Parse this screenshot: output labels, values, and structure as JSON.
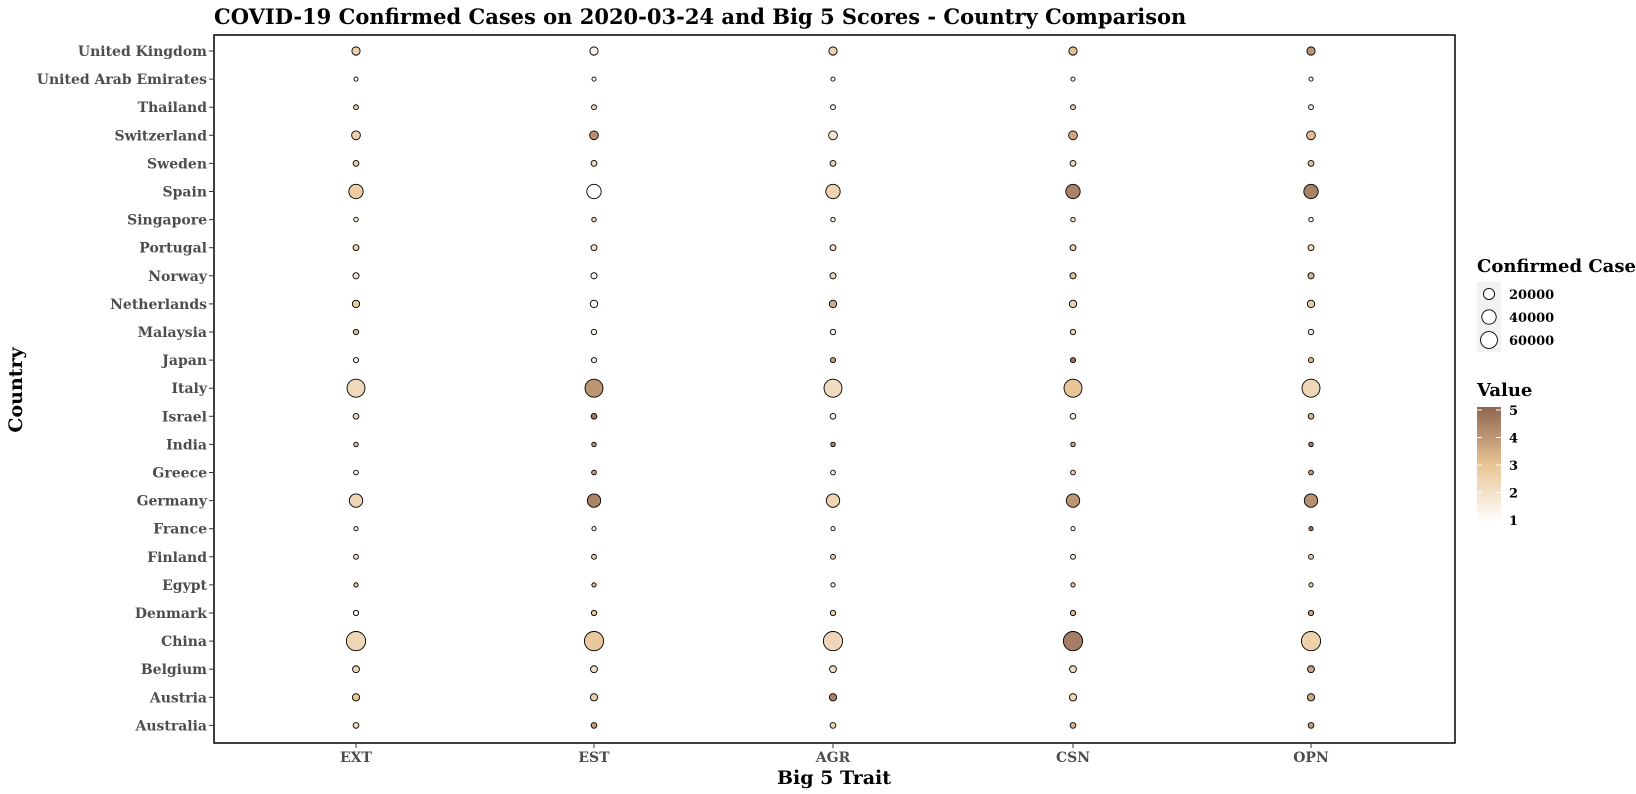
{
  "chart_data": {
    "type": "scatter",
    "title": "COVID-19 Confirmed Cases on 2020-03-24 and Big 5 Scores - Country Comparison",
    "xlabel": "Big 5 Trait",
    "ylabel": "Country",
    "categories_x": [
      "EXT",
      "EST",
      "AGR",
      "CSN",
      "OPN"
    ],
    "categories_y": [
      "United Kingdom",
      "United Arab Emirates",
      "Thailand",
      "Switzerland",
      "Sweden",
      "Spain",
      "Singapore",
      "Portugal",
      "Norway",
      "Netherlands",
      "Malaysia",
      "Japan",
      "Italy",
      "Israel",
      "India",
      "Greece",
      "Germany",
      "France",
      "Finland",
      "Egypt",
      "Denmark",
      "China",
      "Belgium",
      "Austria",
      "Australia"
    ],
    "confirmed_cases": {
      "United Kingdom": 8100,
      "United Arab Emirates": 250,
      "Thailand": 930,
      "Switzerland": 9800,
      "Sweden": 2300,
      "Spain": 39700,
      "Singapore": 560,
      "Portugal": 2400,
      "Norway": 2800,
      "Netherlands": 5600,
      "Malaysia": 1600,
      "Japan": 1200,
      "Italy": 69200,
      "Israel": 2100,
      "India": 560,
      "Greece": 740,
      "Germany": 32900,
      "France": 300,
      "Finland": 880,
      "Egypt": 370,
      "Denmark": 1400,
      "China": 81600,
      "Belgium": 4300,
      "Austria": 5300,
      "Australia": 2100
    },
    "values": {
      "United Kingdom": [
        2.6,
        1.4,
        2.5,
        3.1,
        4.0
      ],
      "United Arab Emirates": [
        1.3,
        1.2,
        1.3,
        1.5,
        1.4
      ],
      "Thailand": [
        2.9,
        2.3,
        1.4,
        2.6,
        1.8
      ],
      "Switzerland": [
        2.6,
        4.1,
        1.9,
        3.6,
        3.2
      ],
      "Sweden": [
        2.8,
        2.3,
        2.6,
        2.4,
        3.1
      ],
      "Spain": [
        2.7,
        1.0,
        2.5,
        4.4,
        4.4
      ],
      "Singapore": [
        1.7,
        2.6,
        1.7,
        2.1,
        1.6
      ],
      "Portugal": [
        2.6,
        1.9,
        2.1,
        2.7,
        2.4
      ],
      "Norway": [
        2.1,
        1.3,
        2.4,
        3.1,
        3.3
      ],
      "Netherlands": [
        2.8,
        1.3,
        3.5,
        2.6,
        2.8
      ],
      "Malaysia": [
        3.2,
        1.6,
        1.5,
        2.5,
        1.6
      ],
      "Japan": [
        1.6,
        1.3,
        3.8,
        4.7,
        3.2
      ],
      "Italy": [
        2.3,
        4.0,
        2.2,
        3.0,
        2.4
      ],
      "Israel": [
        2.4,
        4.6,
        1.5,
        1.6,
        3.3
      ],
      "India": [
        3.1,
        4.0,
        4.4,
        3.6,
        4.5
      ],
      "Greece": [
        1.6,
        3.8,
        1.5,
        2.6,
        3.8
      ],
      "Germany": [
        2.4,
        4.4,
        2.5,
        4.0,
        4.1
      ],
      "France": [
        1.5,
        1.5,
        1.5,
        1.2,
        4.6
      ],
      "Finland": [
        2.0,
        2.5,
        2.5,
        1.6,
        2.5
      ],
      "Egypt": [
        2.7,
        3.2,
        1.4,
        2.7,
        2.6
      ],
      "Denmark": [
        1.6,
        2.9,
        2.5,
        3.2,
        3.6
      ],
      "China": [
        2.4,
        2.9,
        2.4,
        4.5,
        2.6
      ],
      "Belgium": [
        2.4,
        2.1,
        2.1,
        2.2,
        3.7
      ],
      "Austria": [
        3.0,
        2.7,
        4.4,
        2.5,
        3.6
      ],
      "Australia": [
        2.4,
        3.8,
        2.5,
        3.4,
        3.9
      ]
    },
    "legend_size": {
      "title": "Confirmed Cases",
      "entries": [
        20000,
        40000,
        60000
      ],
      "labels": [
        "20000",
        "40000",
        "60000"
      ]
    },
    "legend_color": {
      "title": "Value",
      "range": [
        1,
        5
      ],
      "ticks": [
        "5",
        "4",
        "3",
        "2",
        "1"
      ],
      "colors": [
        "#ffffff",
        "#e8c596",
        "#8f6550"
      ]
    },
    "grid": false,
    "legend_placement": "right"
  }
}
